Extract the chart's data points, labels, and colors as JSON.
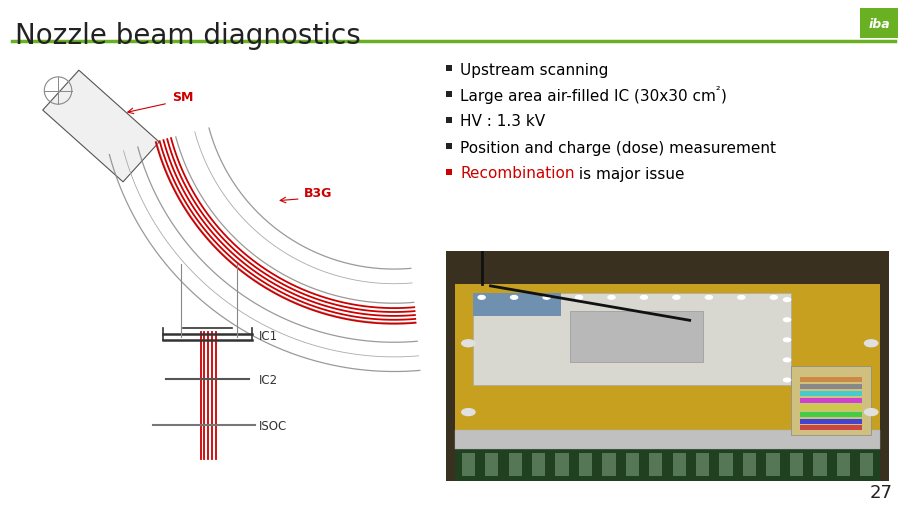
{
  "title": "Nozzle beam diagnostics",
  "title_fontsize": 20,
  "title_color": "#222222",
  "header_line_color": "#6ab023",
  "logo_green_color": "#6ab023",
  "bullet_items": [
    {
      "text": "Upstream scanning",
      "color": "#000000"
    },
    {
      "text": "Large area air-filled IC (30x30 cm²)",
      "color": "#000000"
    },
    {
      "text": "HV : 1.3 kV",
      "color": "#000000"
    },
    {
      "text": "Position and charge (dose) measurement",
      "color": "#000000"
    },
    {
      "text_parts": [
        {
          "text": "Recombination",
          "color": "#cc0000"
        },
        {
          "text": " is major issue",
          "color": "#000000"
        }
      ]
    }
  ],
  "bullet_color": "#222222",
  "bullet_red_color": "#cc0000",
  "bullet_fontsize": 11,
  "page_number": "27",
  "page_number_fontsize": 13,
  "background_color": "#ffffff",
  "label_SM": "SM",
  "label_B3G": "B3G",
  "label_IC1": "IC1",
  "label_IC2": "IC2",
  "label_ISOC": "ISOC",
  "label_color_red": "#cc0000",
  "label_color_dark": "#333333",
  "diagram_gray": "#888888",
  "diagram_light": "#aaaaaa"
}
